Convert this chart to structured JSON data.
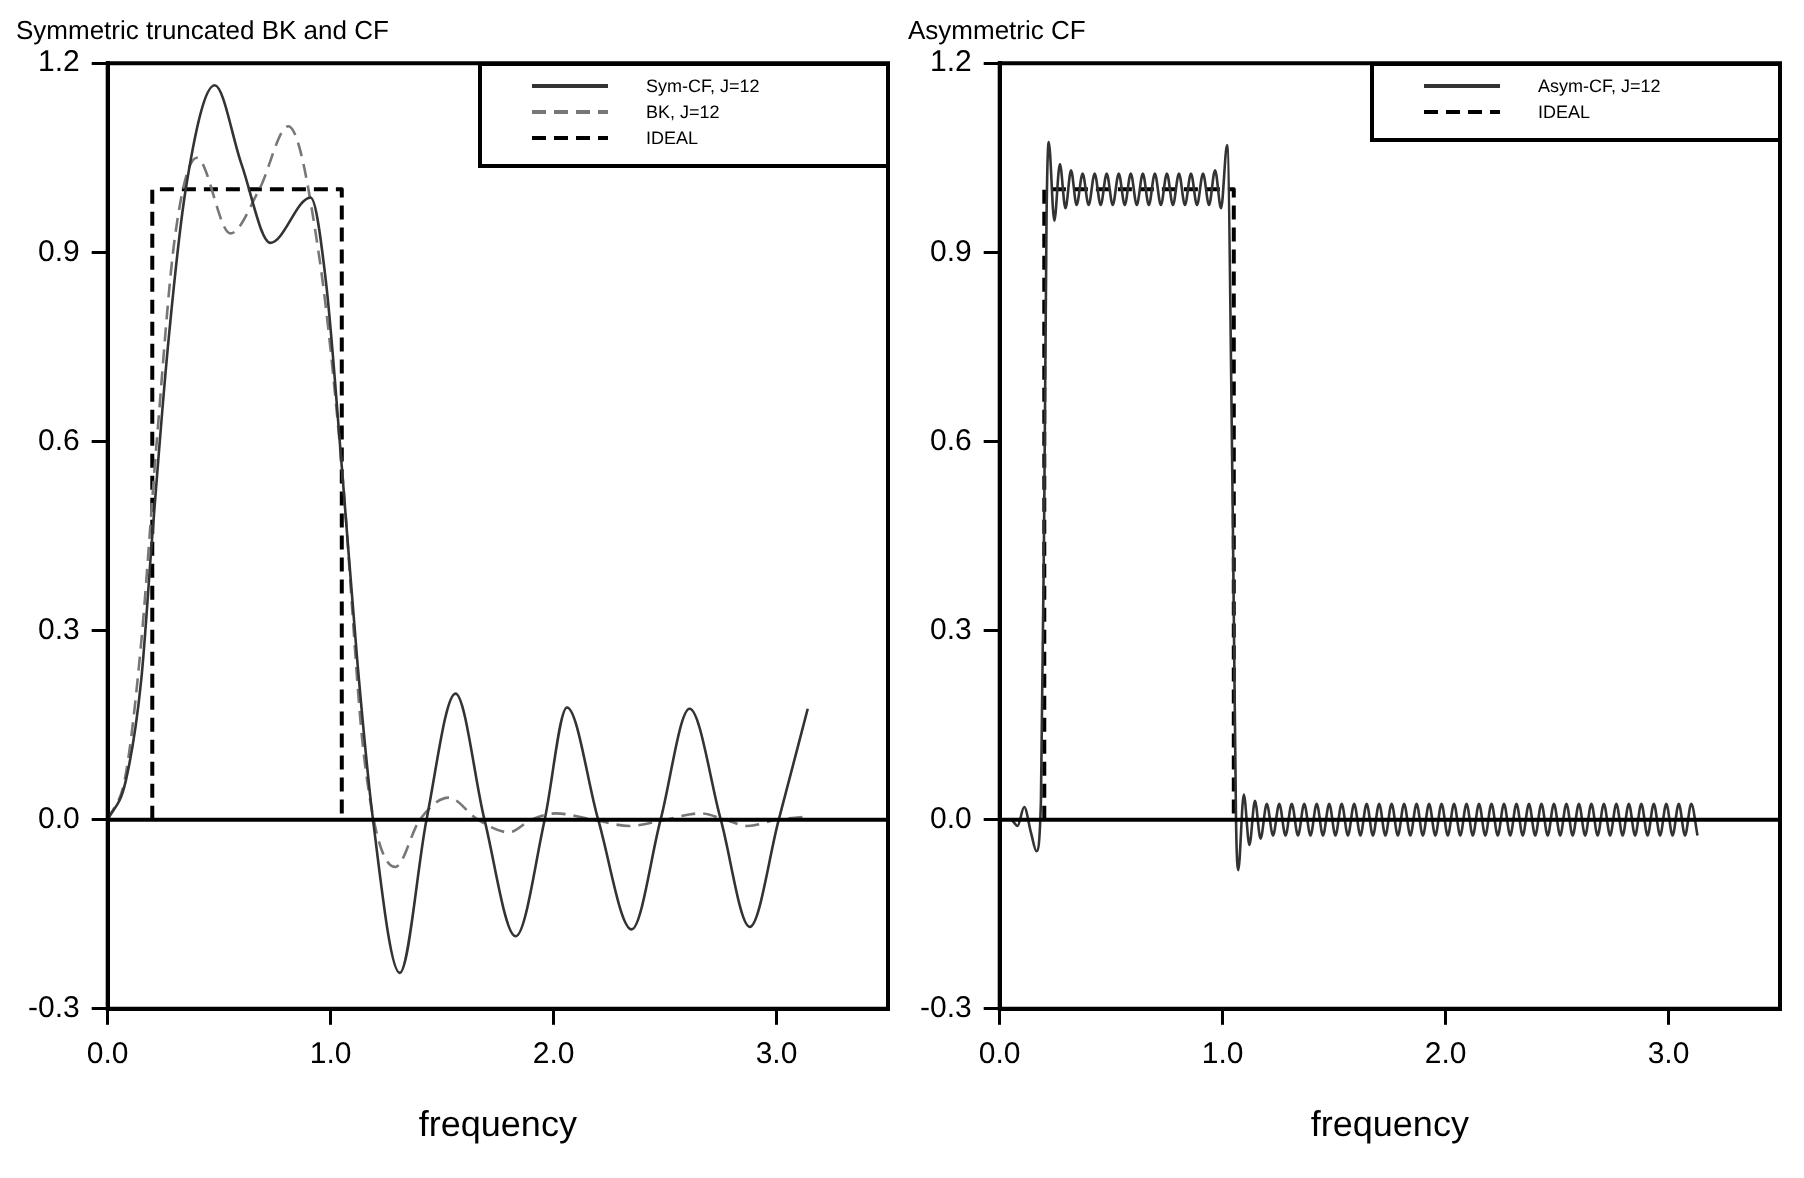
{
  "chart_data": [
    {
      "type": "line",
      "title": "Symmetric truncated BK and CF",
      "xlabel": "frequency",
      "xlim": [
        0,
        3.5
      ],
      "ylim": [
        -0.3,
        1.2
      ],
      "xticks": [
        {
          "value": 0,
          "label": "0.0"
        },
        {
          "value": 1,
          "label": "1.0"
        },
        {
          "value": 2,
          "label": "2.0"
        },
        {
          "value": 3,
          "label": "3.0"
        }
      ],
      "yticks": [
        -0.3,
        {
          "value": 0,
          "label": "0.0"
        },
        0.3,
        0.6,
        0.9,
        1.2
      ],
      "grid": false,
      "legend": "top right",
      "marker": "none",
      "ref_lines": [
        {
          "axis": "y",
          "value": 0,
          "color": "#000000",
          "line_style": "solid"
        }
      ],
      "series": [
        {
          "name": "Sym-CF, J=12",
          "color": "#333333",
          "line_style": "solid",
          "x": [
            0,
            0.08,
            0.15,
            0.2,
            0.27,
            0.35,
            0.48,
            0.6,
            0.73,
            0.91,
            0.98,
            1.05,
            1.12,
            1.19,
            1.31,
            1.43,
            1.56,
            1.69,
            1.83,
            1.96,
            2.06,
            2.2,
            2.35,
            2.48,
            2.61,
            2.75,
            2.88,
            3.01,
            3.14
          ],
          "values": [
            0,
            0.06,
            0.22,
            0.45,
            0.75,
            1.0,
            1.165,
            1.04,
            0.915,
            0.987,
            0.85,
            0.56,
            0.25,
            0,
            -0.243,
            0,
            0.2,
            0,
            -0.185,
            0,
            0.178,
            0,
            -0.174,
            0,
            0.176,
            0,
            -0.17,
            0,
            0.176
          ]
        },
        {
          "name": "BK, J=12",
          "color": "#777777",
          "line_style": "dashed",
          "x": [
            0,
            0.08,
            0.15,
            0.22,
            0.3,
            0.4,
            0.55,
            0.68,
            0.81,
            0.95,
            1.05,
            1.15,
            1.29,
            1.4,
            1.53,
            1.66,
            1.8,
            1.9,
            2.01,
            2.18,
            2.34,
            2.5,
            2.66,
            2.77,
            2.87,
            3.0,
            3.14
          ],
          "values": [
            0,
            0.07,
            0.28,
            0.6,
            0.92,
            1.05,
            0.93,
            1.0,
            1.1,
            0.89,
            0.56,
            0.1,
            -0.075,
            0,
            0.035,
            0,
            -0.02,
            0,
            0.01,
            0,
            -0.01,
            0,
            0.01,
            0,
            -0.01,
            0,
            0.005
          ]
        },
        {
          "name": "IDEAL",
          "color": "#000000",
          "line_style": "dashed",
          "x": [
            0.2,
            0.2,
            1.05,
            1.05
          ],
          "values": [
            0,
            1,
            1,
            0
          ]
        }
      ]
    },
    {
      "type": "line",
      "title": "Asymmetric CF",
      "xlabel": "frequency",
      "xlim": [
        0,
        3.5
      ],
      "ylim": [
        -0.3,
        1.2
      ],
      "xticks": [
        {
          "value": 0,
          "label": "0.0"
        },
        {
          "value": 1,
          "label": "1.0"
        },
        {
          "value": 2,
          "label": "2.0"
        },
        {
          "value": 3,
          "label": "3.0"
        }
      ],
      "yticks": [
        -0.3,
        {
          "value": 0,
          "label": "0.0"
        },
        0.3,
        0.6,
        0.9,
        1.2
      ],
      "grid": false,
      "legend": "top right",
      "marker": "none",
      "ref_lines": [
        {
          "axis": "y",
          "value": 0,
          "color": "#000000",
          "line_style": "solid"
        }
      ],
      "series": [
        {
          "name": "Asym-CF, J=12",
          "color": "#333333",
          "line_style": "solid",
          "x": [
            0,
            0.05,
            0.08,
            0.11,
            0.14,
            0.165,
            0.185,
            0.2,
            0.21,
            0.22,
            0.245,
            0.27,
            0.295,
            0.32,
            0.345,
            0.372,
            0.399,
            0.426,
            0.453,
            0.48,
            0.507,
            0.534,
            0.561,
            0.588,
            0.615,
            0.642,
            0.669,
            0.696,
            0.723,
            0.75,
            0.777,
            0.804,
            0.831,
            0.858,
            0.885,
            0.912,
            0.939,
            0.966,
            0.993,
            1.02,
            1.045,
            1.06,
            1.07,
            1.095,
            1.12,
            1.145,
            1.17,
            1.198,
            1.226,
            1.254,
            1.282,
            1.31,
            1.338,
            1.366,
            1.394,
            1.422,
            1.45,
            1.478,
            1.506,
            1.534,
            1.562,
            1.59,
            1.618,
            1.646,
            1.674,
            1.702,
            1.73,
            1.758,
            1.786,
            1.814,
            1.842,
            1.87,
            1.898,
            1.926,
            1.954,
            1.982,
            2.01,
            2.038,
            2.066,
            2.094,
            2.122,
            2.15,
            2.178,
            2.206,
            2.234,
            2.262,
            2.29,
            2.318,
            2.346,
            2.374,
            2.402,
            2.43,
            2.458,
            2.486,
            2.514,
            2.542,
            2.57,
            2.598,
            2.626,
            2.654,
            2.682,
            2.71,
            2.738,
            2.766,
            2.794,
            2.822,
            2.85,
            2.878,
            2.906,
            2.934,
            2.962,
            2.99,
            3.018,
            3.046,
            3.074,
            3.102,
            3.13
          ],
          "values": [
            0,
            0,
            -0.01,
            0.02,
            -0.02,
            -0.05,
            0.03,
            0.5,
            0.95,
            1.075,
            0.95,
            1.04,
            0.97,
            1.03,
            0.975,
            1.025,
            0.975,
            1.025,
            0.975,
            1.025,
            0.975,
            1.025,
            0.975,
            1.025,
            0.975,
            1.025,
            0.975,
            1.025,
            0.975,
            1.025,
            0.975,
            1.025,
            0.975,
            1.025,
            0.975,
            1.025,
            0.975,
            1.03,
            0.97,
            1.07,
            0.5,
            0,
            -0.08,
            0.04,
            -0.04,
            0.03,
            -0.03,
            0.025,
            -0.025,
            0.025,
            -0.025,
            0.025,
            -0.025,
            0.025,
            -0.025,
            0.025,
            -0.025,
            0.025,
            -0.025,
            0.025,
            -0.025,
            0.025,
            -0.025,
            0.025,
            -0.025,
            0.025,
            -0.025,
            0.025,
            -0.025,
            0.025,
            -0.025,
            0.025,
            -0.025,
            0.025,
            -0.025,
            0.025,
            -0.025,
            0.025,
            -0.025,
            0.025,
            -0.025,
            0.025,
            -0.025,
            0.025,
            -0.025,
            0.025,
            -0.025,
            0.025,
            -0.025,
            0.025,
            -0.025,
            0.025,
            -0.025,
            0.025,
            -0.025,
            0.025,
            -0.025,
            0.025,
            -0.025,
            0.025,
            -0.025,
            0.025,
            -0.025,
            0.025,
            -0.025,
            0.025,
            -0.025,
            0.025,
            -0.025,
            0.025,
            -0.025,
            0.025,
            -0.025,
            0.025,
            -0.025,
            0.025,
            -0.025
          ]
        },
        {
          "name": "IDEAL",
          "color": "#000000",
          "line_style": "dashed",
          "x": [
            0.2,
            0.2,
            1.05,
            1.05
          ],
          "values": [
            0,
            1,
            1,
            0
          ]
        }
      ]
    }
  ]
}
